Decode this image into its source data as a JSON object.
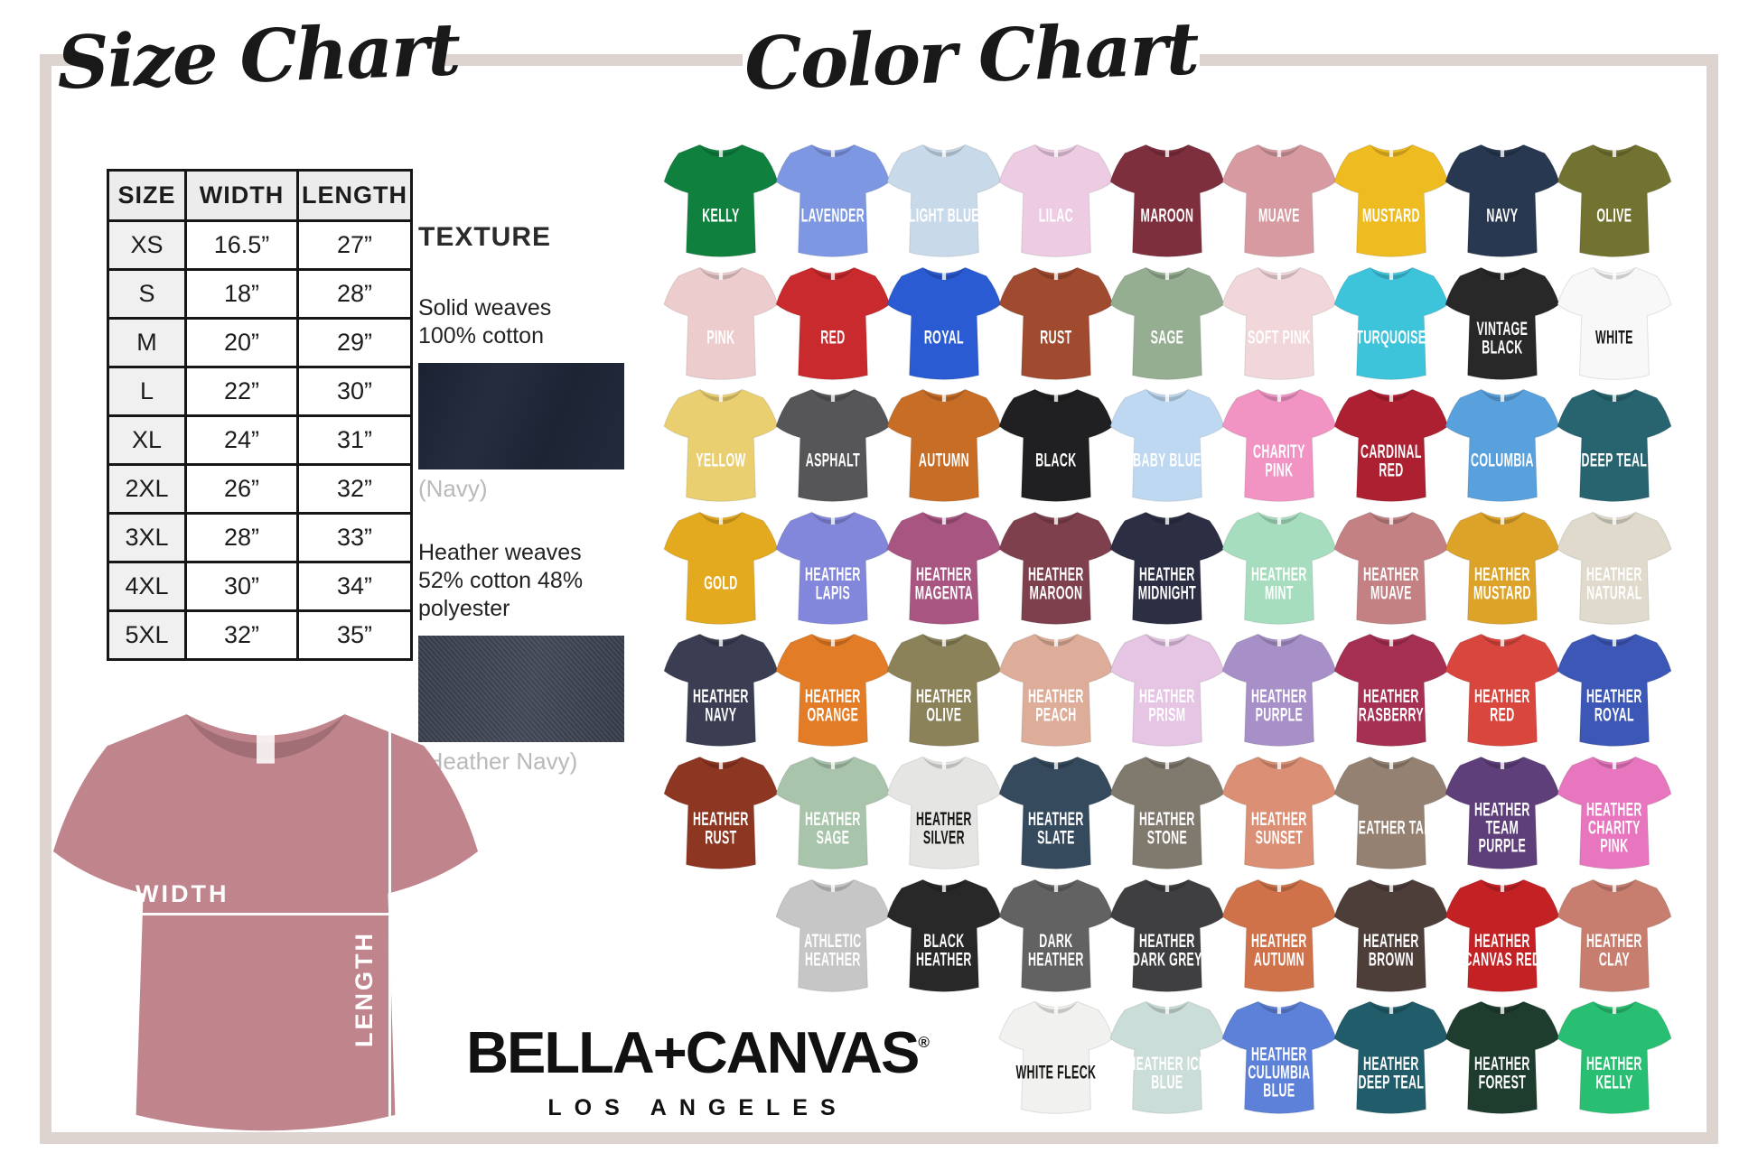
{
  "titles": {
    "size": "Size Chart",
    "color": "Color Chart"
  },
  "size_chart": {
    "headers": [
      "SIZE",
      "WIDTH",
      "LENGTH"
    ],
    "rows": [
      [
        "XS",
        "16.5”",
        "27”"
      ],
      [
        "S",
        "18”",
        "28”"
      ],
      [
        "M",
        "20”",
        "29”"
      ],
      [
        "L",
        "22”",
        "30”"
      ],
      [
        "XL",
        "24”",
        "31”"
      ],
      [
        "2XL",
        "26”",
        "32”"
      ],
      [
        "3XL",
        "28”",
        "33”"
      ],
      [
        "4XL",
        "30”",
        "34”"
      ],
      [
        "5XL",
        "32”",
        "35”"
      ]
    ]
  },
  "texture": {
    "heading": "TEXTURE",
    "solid_lines": [
      "Solid weaves",
      "100% cotton"
    ],
    "solid_caption": "(Navy)",
    "solid_color": "#222a3a",
    "heather_lines": [
      "Heather weaves",
      "52% cotton 48% polyester"
    ],
    "heather_caption": "(Heather Navy)",
    "heather_color": "#3c4150"
  },
  "measure_diagram": {
    "width_label": "WIDTH",
    "length_label": "LENGTH",
    "shirt_color": "#c0848c"
  },
  "brand": {
    "name": "BELLA+CANVAS",
    "registered": "®",
    "city": "LOS ANGELES"
  },
  "color_chart": {
    "rows": [
      {
        "offset": 0,
        "shirts": [
          {
            "name": "KELLY",
            "color": "#10803f"
          },
          {
            "name": "LAVENDER",
            "color": "#7e97e3"
          },
          {
            "name": "LIGHT BLUE",
            "color": "#c8d9e9"
          },
          {
            "name": "LILAC",
            "color": "#eccbe3"
          },
          {
            "name": "MAROON",
            "color": "#7e2f3e"
          },
          {
            "name": "MUAVE",
            "color": "#d69aa0"
          },
          {
            "name": "MUSTARD",
            "color": "#eebb21"
          },
          {
            "name": "NAVY",
            "color": "#273850"
          },
          {
            "name": "OLIVE",
            "color": "#737331"
          }
        ]
      },
      {
        "offset": 0,
        "shirts": [
          {
            "name": "PINK",
            "color": "#edccce"
          },
          {
            "name": "RED",
            "color": "#c92a2d"
          },
          {
            "name": "ROYAL",
            "color": "#2a5bd3"
          },
          {
            "name": "RUST",
            "color": "#a04a2f"
          },
          {
            "name": "SAGE",
            "color": "#95ad91"
          },
          {
            "name": "SOFT PINK",
            "color": "#f1d7d9"
          },
          {
            "name": "TURQUOISE",
            "color": "#3ec4da"
          },
          {
            "name": "VINTAGE BLACK",
            "color": "#282828"
          },
          {
            "name": "WHITE",
            "color": "#f8f8f8",
            "dark_text": true
          }
        ]
      },
      {
        "offset": 0,
        "shirts": [
          {
            "name": "YELLOW",
            "color": "#e9cf70"
          },
          {
            "name": "ASPHALT",
            "color": "#565658"
          },
          {
            "name": "AUTUMN",
            "color": "#c76d26"
          },
          {
            "name": "BLACK",
            "color": "#202022"
          },
          {
            "name": "BABY BLUE",
            "color": "#bed8f1"
          },
          {
            "name": "CHARITY PINK",
            "color": "#f194c3"
          },
          {
            "name": "CARDINAL RED",
            "color": "#ad2031"
          },
          {
            "name": "COLUMBIA",
            "color": "#59a1dd"
          },
          {
            "name": "DEEP TEAL",
            "color": "#276470"
          }
        ]
      },
      {
        "offset": 0,
        "shirts": [
          {
            "name": "GOLD",
            "color": "#e3a91f"
          },
          {
            "name": "HEATHER LAPIS",
            "color": "#8387db"
          },
          {
            "name": "HEATHER MAGENTA",
            "color": "#a85581"
          },
          {
            "name": "HEATHER MAROON",
            "color": "#7f404e"
          },
          {
            "name": "HEATHER MIDNIGHT",
            "color": "#2c2e44"
          },
          {
            "name": "HEATHER MINT",
            "color": "#a6ddbe"
          },
          {
            "name": "HEATHER MUAVE",
            "color": "#c38184"
          },
          {
            "name": "HEATHER MUSTARD",
            "color": "#dca328"
          },
          {
            "name": "HEATHER NATURAL",
            "color": "#dfdacb"
          }
        ]
      },
      {
        "offset": 0,
        "shirts": [
          {
            "name": "HEATHER NAVY",
            "color": "#3b3e52"
          },
          {
            "name": "HEATHER ORANGE",
            "color": "#e27c26"
          },
          {
            "name": "HEATHER OLIVE",
            "color": "#8b825a"
          },
          {
            "name": "HEATHER PEACH",
            "color": "#ddad99"
          },
          {
            "name": "HEATHER PRISM",
            "color": "#e5c4e4"
          },
          {
            "name": "HEATHER PURPLE",
            "color": "#a790c7"
          },
          {
            "name": "HEATHER RASBERRY",
            "color": "#a63052"
          },
          {
            "name": "HEATHER RED",
            "color": "#d9463e"
          },
          {
            "name": "HEATHER ROYAL",
            "color": "#3d57b6"
          }
        ]
      },
      {
        "offset": 0,
        "shirts": [
          {
            "name": "HEATHER RUST",
            "color": "#8d3621"
          },
          {
            "name": "HEATHER SAGE",
            "color": "#a8c5ac"
          },
          {
            "name": "HEATHER SILVER",
            "color": "#e5e5e3",
            "dark_text": true
          },
          {
            "name": "HEATHER SLATE",
            "color": "#354b5d"
          },
          {
            "name": "HEATHER STONE",
            "color": "#80796e"
          },
          {
            "name": "HEATHER SUNSET",
            "color": "#db8f74"
          },
          {
            "name": "HEATHER TAN",
            "color": "#948171"
          },
          {
            "name": "HEATHER TEAM PURPLE",
            "color": "#5f3f7a"
          },
          {
            "name": "HEATHER CHARITY PINK",
            "color": "#e776be"
          }
        ]
      },
      {
        "offset": 1,
        "shirts": [
          {
            "name": "ATHLETIC HEATHER",
            "color": "#c6c6c6"
          },
          {
            "name": "BLACK HEATHER",
            "color": "#282828"
          },
          {
            "name": "DARK HEATHER",
            "color": "#626262"
          },
          {
            "name": "HEATHER DARK GREY",
            "color": "#3f3f41"
          },
          {
            "name": "HEATHER AUTUMN",
            "color": "#cf7249"
          },
          {
            "name": "HEATHER BROWN",
            "color": "#4e3e3a"
          },
          {
            "name": "HEATHER CANVAS RED",
            "color": "#c42124"
          },
          {
            "name": "HEATHER CLAY",
            "color": "#c77e6f"
          }
        ]
      },
      {
        "offset": 3,
        "shirts": [
          {
            "name": "WHITE FLECK",
            "color": "#f1f1ef",
            "dark_text": true
          },
          {
            "name": "HEATHER ICE BLUE",
            "color": "#cbddd8"
          },
          {
            "name": "HEATHER CULUMBIA BLUE",
            "color": "#5d81d8"
          },
          {
            "name": "HEATHER DEEP TEAL",
            "color": "#205c6a"
          },
          {
            "name": "HEATHER FOREST",
            "color": "#1f3d2e"
          },
          {
            "name": "HEATHER KELLY",
            "color": "#29bf72"
          }
        ]
      }
    ]
  }
}
